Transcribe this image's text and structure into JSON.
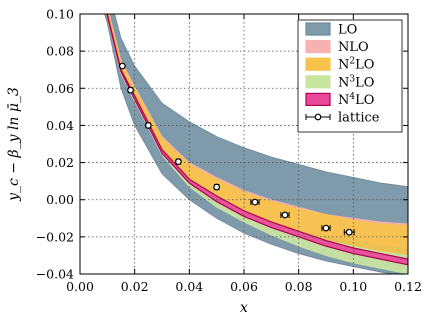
{
  "chart_data": {
    "type": "line",
    "title": "",
    "xlabel": "x",
    "ylabel": "y_c − β_y ln μ̄_3",
    "xlim": [
      0.0,
      0.12
    ],
    "ylim": [
      -0.04,
      0.1
    ],
    "xticks": [
      0.0,
      0.02,
      0.04,
      0.06,
      0.08,
      0.1,
      0.12
    ],
    "xtick_labels": [
      "0.00",
      "0.02",
      "0.04",
      "0.06",
      "0.08",
      "0.10",
      "0.12"
    ],
    "yticks": [
      -0.04,
      -0.02,
      0.0,
      0.02,
      0.04,
      0.06,
      0.08,
      0.1
    ],
    "ytick_labels": [
      "−0.04",
      "−0.02",
      "0.00",
      "0.02",
      "0.04",
      "0.06",
      "0.08",
      "0.10"
    ],
    "grid": true,
    "legend_position": "top-right",
    "bands": [
      {
        "name": "LO",
        "color": "#7f9aab",
        "x": [
          0.005,
          0.008,
          0.01,
          0.015,
          0.02,
          0.03,
          0.04,
          0.05,
          0.06,
          0.07,
          0.08,
          0.09,
          0.1,
          0.11,
          0.12
        ],
        "upper": [
          0.12,
          0.12,
          0.115,
          0.087,
          0.072,
          0.052,
          0.042,
          0.034,
          0.028,
          0.023,
          0.019,
          0.015,
          0.012,
          0.009,
          0.007
        ],
        "lower": [
          0.12,
          0.105,
          0.095,
          0.06,
          0.04,
          0.014,
          0.0,
          -0.01,
          -0.018,
          -0.024,
          -0.029,
          -0.033,
          -0.036,
          -0.039,
          -0.041
        ]
      },
      {
        "name": "NLO",
        "color": "#f6b2ae",
        "x": [
          0.005,
          0.01,
          0.015,
          0.02,
          0.03,
          0.04,
          0.05,
          0.06,
          0.07,
          0.08,
          0.09,
          0.1,
          0.11,
          0.12
        ],
        "upper": [
          0.12,
          0.104,
          0.075,
          0.061,
          0.034,
          0.02,
          0.012,
          0.005,
          0.0,
          -0.004,
          -0.008,
          -0.01,
          -0.012,
          -0.013
        ],
        "lower": [
          0.12,
          0.1,
          0.07,
          0.056,
          0.028,
          0.013,
          0.003,
          -0.005,
          -0.011,
          -0.016,
          -0.019,
          -0.022,
          -0.024,
          -0.026
        ]
      },
      {
        "name": "N^2LO",
        "color": "#f7c34a",
        "x": [
          0.005,
          0.01,
          0.015,
          0.02,
          0.03,
          0.04,
          0.05,
          0.06,
          0.07,
          0.08,
          0.09,
          0.1,
          0.11,
          0.12
        ],
        "upper": [
          0.12,
          0.103,
          0.074,
          0.06,
          0.033,
          0.019,
          0.011,
          0.004,
          -0.001,
          -0.005,
          -0.008,
          -0.011,
          -0.013,
          -0.014
        ],
        "lower": [
          0.12,
          0.099,
          0.069,
          0.055,
          0.026,
          0.01,
          0.0,
          -0.008,
          -0.014,
          -0.019,
          -0.023,
          -0.026,
          -0.028,
          -0.03
        ]
      },
      {
        "name": "N^3LO",
        "color": "#c9e6a1",
        "x": [
          0.005,
          0.01,
          0.015,
          0.02,
          0.03,
          0.04,
          0.05,
          0.06,
          0.07,
          0.08,
          0.09,
          0.1,
          0.11,
          0.12
        ],
        "upper": [
          0.12,
          0.1,
          0.07,
          0.056,
          0.027,
          0.011,
          0.001,
          -0.007,
          -0.013,
          -0.018,
          -0.022,
          -0.025,
          -0.028,
          -0.03
        ],
        "lower": [
          0.12,
          0.098,
          0.068,
          0.053,
          0.024,
          0.007,
          -0.004,
          -0.012,
          -0.019,
          -0.025,
          -0.03,
          -0.034,
          -0.037,
          -0.04
        ]
      },
      {
        "name": "N^4LO",
        "color": "#e8489a",
        "x": [
          0.005,
          0.01,
          0.015,
          0.02,
          0.03,
          0.04,
          0.05,
          0.06,
          0.07,
          0.08,
          0.09,
          0.1,
          0.11,
          0.12
        ],
        "upper": [
          0.12,
          0.1,
          0.07,
          0.056,
          0.027,
          0.011,
          0.002,
          -0.006,
          -0.012,
          -0.017,
          -0.022,
          -0.026,
          -0.029,
          -0.032
        ],
        "lower": [
          0.12,
          0.099,
          0.069,
          0.054,
          0.025,
          0.009,
          -0.001,
          -0.009,
          -0.015,
          -0.02,
          -0.025,
          -0.029,
          -0.032,
          -0.035
        ]
      }
    ],
    "lattice": {
      "name": "lattice",
      "x": [
        0.0155,
        0.0185,
        0.025,
        0.036,
        0.05,
        0.064,
        0.075,
        0.09,
        0.0985
      ],
      "y": [
        0.072,
        0.059,
        0.04,
        0.0205,
        0.0068,
        -0.0013,
        -0.0082,
        -0.0153,
        -0.0175
      ],
      "xerr": [
        0.0005,
        0.0008,
        0.0008,
        0.0008,
        0.0008,
        0.0015,
        0.0015,
        0.0015,
        0.0018
      ],
      "yerr": [
        0.0012,
        0.001,
        0.001,
        0.0008,
        0.0008,
        0.0008,
        0.0008,
        0.0008,
        0.0008
      ]
    },
    "legend": [
      "LO",
      "NLO",
      "N^2LO",
      "N^3LO",
      "N^4LO",
      "lattice"
    ]
  }
}
